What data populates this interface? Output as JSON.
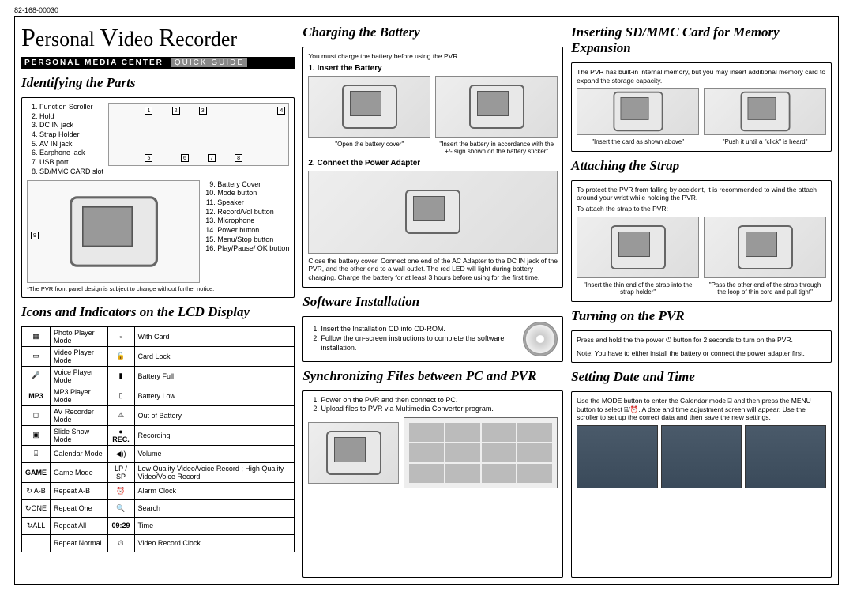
{
  "doc_number": "82-168-00030",
  "main_title_parts": [
    "P",
    "ersonal ",
    "V",
    "ideo ",
    "R",
    "ecorder"
  ],
  "subtitle_bold": "PERSONAL MEDIA CENTER",
  "subtitle_light": "QUICK GUIDE",
  "col1": {
    "h_identify": "Identifying the Parts",
    "parts_left": [
      "Function Scroller",
      "Hold",
      "DC IN jack",
      "Strap Holder",
      "AV IN jack",
      "Earphone jack",
      "USB port",
      "SD/MMC CARD slot"
    ],
    "parts_right_start": 9,
    "parts_right": [
      "Battery Cover",
      "Mode button",
      "Speaker",
      "Record/Vol button",
      "Microphone",
      "Power button",
      "Menu/Stop button",
      "Play/Pause/ OK button"
    ],
    "footnote": "*The PVR front panel design is subject to change without further notice.",
    "h_icons": "Icons and Indicators on the LCD Display",
    "icons_left": [
      {
        "sym": "▦",
        "label": "Photo Player Mode"
      },
      {
        "sym": "▭",
        "label": "Video Player Mode"
      },
      {
        "sym": "🎤",
        "label": "Voice Player Mode"
      },
      {
        "sym": "MP3",
        "label": "MP3 Player Mode",
        "bold": true
      },
      {
        "sym": "◻",
        "label": "AV Recorder Mode"
      },
      {
        "sym": "▣",
        "label": "Slide Show Mode"
      },
      {
        "sym": "⌸",
        "label": "Calendar Mode"
      },
      {
        "sym": "GAME",
        "label": "Game Mode",
        "bold": true
      },
      {
        "sym": "↻ A-B",
        "label": "Repeat A-B"
      },
      {
        "sym": "↻ONE",
        "label": "Repeat One"
      },
      {
        "sym": "↻ALL",
        "label": "Repeat All"
      },
      {
        "sym": "",
        "label": "Repeat Normal"
      }
    ],
    "icons_right": [
      {
        "sym": "▫",
        "label": "With Card"
      },
      {
        "sym": "🔒",
        "label": "Card Lock"
      },
      {
        "sym": "▮",
        "label": "Battery Full"
      },
      {
        "sym": "▯",
        "label": "Battery Low"
      },
      {
        "sym": "⚠",
        "label": "Out of Battery"
      },
      {
        "sym": "● REC.",
        "label": "Recording",
        "bold": true
      },
      {
        "sym": "◀))",
        "label": "Volume"
      },
      {
        "sym": "LP / SP",
        "label": "Low Quality Video/Voice Record ; High Quality Video/Voice Record"
      },
      {
        "sym": "⏰",
        "label": "Alarm Clock"
      },
      {
        "sym": "🔍",
        "label": "Search"
      },
      {
        "sym": "09:29",
        "label": "Time",
        "bold": true
      },
      {
        "sym": "⏱",
        "label": "Video Record Clock"
      }
    ]
  },
  "col2": {
    "h_charging": "Charging the Battery",
    "charging_intro": "You must charge the battery before using the PVR.",
    "h_insert": "1. Insert the Battery",
    "cap_a": "\"Open the battery cover\"",
    "cap_b": "\"Insert the battery in accordance with the +/- sign shown on the battery sticker\"",
    "h_connect": "2. Connect the Power Adapter",
    "connect_text": "Close the battery cover. Connect one end of the AC Adapter to the DC IN jack of the PVR, and the other end to a wall outlet. The red LED will light during battery charging. Charge the battery for at least 3 hours before using for the first time.",
    "h_software": "Software Installation",
    "software_steps": [
      "Insert the Installation CD into CD-ROM.",
      "Follow the on-screen instructions to complete the software installation."
    ],
    "h_sync": "Synchronizing Files between PC and PVR",
    "sync_steps": [
      "Power on the PVR and then connect to PC.",
      "Upload files to PVR via Multimedia Converter program."
    ]
  },
  "col3": {
    "h_sd": "Inserting SD/MMC Card for Memory Expansion",
    "sd_intro": "The PVR has built-in internal memory, but you may insert additional memory card to expand the storage capacity.",
    "cap_sd_a": "\"Insert the card as shown above\"",
    "cap_sd_b": "\"Push it until a \"click\" is heard\"",
    "h_strap": "Attaching the Strap",
    "strap_intro": "To protect the PVR from falling by accident, it is recommended to wind the attach around your wrist while holding the PVR.",
    "strap_sub": "To attach the strap to the PVR:",
    "cap_strap_a": "\"Insert the thin end of the strap into the strap holder\"",
    "cap_strap_b": "\"Pass the other end of the strap through the loop of thin cord and pull tight\"",
    "h_turnon": "Turning on the PVR",
    "turnon_text": "Press and hold the the power ⏻ button for 2 seconds to turn on the PVR.",
    "turnon_note": "Note: You have to either install the battery or connect the power adapter first.",
    "h_date": "Setting Date and Time",
    "date_text": "Use the MODE button to enter the Calendar mode ⌸ and then press the MENU button to select ⌸/⏰. A date and time adjustment screen will appear. Use the scroller to set up the correct data and then save the new settings."
  }
}
